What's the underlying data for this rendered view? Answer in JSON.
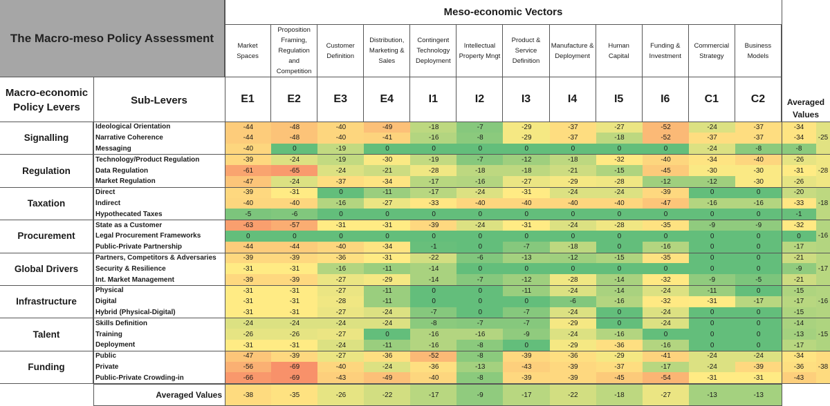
{
  "title": "The Macro-meso Policy Assessment",
  "meso_title": "Meso-economic Vectors",
  "macro_header": "Macro-economic Policy Levers",
  "sublevers_header": "Sub-Levers",
  "averaged_header": "Averaged Values",
  "footer_label": "Averaged Values",
  "columns": [
    {
      "code": "E1",
      "name": "Market Spaces"
    },
    {
      "code": "E2",
      "name": "Proposition Framing, Regulation and Competition"
    },
    {
      "code": "E3",
      "name": "Customer Definition"
    },
    {
      "code": "E4",
      "name": "Distribution, Marketing & Sales"
    },
    {
      "code": "I1",
      "name": "Contingent Technology Deployment"
    },
    {
      "code": "I2",
      "name": "Intellectual Property Mngt"
    },
    {
      "code": "I3",
      "name": "Product & Service Definition"
    },
    {
      "code": "I4",
      "name": "Manufacture & Deployment"
    },
    {
      "code": "I5",
      "name": "Human Capital"
    },
    {
      "code": "I6",
      "name": "Funding & Investment"
    },
    {
      "code": "C1",
      "name": "Commercial Strategy"
    },
    {
      "code": "C2",
      "name": "Business Models"
    }
  ],
  "chart_data": {
    "type": "heatmap",
    "title": "The Macro-meso Policy Assessment",
    "columns": [
      "E1",
      "E2",
      "E3",
      "E4",
      "I1",
      "I2",
      "I3",
      "I4",
      "I5",
      "I6",
      "C1",
      "C2"
    ],
    "groups": [
      {
        "name": "Signalling",
        "average": "-25",
        "rows": [
          {
            "label": "Ideological Orientation",
            "values": [
              -44,
              -48,
              -40,
              -49,
              -18,
              -7,
              -29,
              -37,
              -27,
              -52,
              -24,
              -37
            ],
            "average": -34
          },
          {
            "label": "Narrative Coherence",
            "values": [
              -44,
              -48,
              -40,
              -41,
              -16,
              -8,
              -29,
              -37,
              -18,
              -52,
              -37,
              -37
            ],
            "average": -34
          },
          {
            "label": "Messaging",
            "values": [
              -40,
              0,
              -19,
              0,
              0,
              0,
              0,
              0,
              0,
              0,
              -24,
              -8
            ],
            "average": -8
          }
        ]
      },
      {
        "name": "Regulation",
        "average": "-28",
        "rows": [
          {
            "label": "Technology/Product Regulation",
            "values": [
              -39,
              -24,
              -19,
              -30,
              -19,
              -7,
              -12,
              -18,
              -32,
              -40,
              -34,
              -40
            ],
            "average": -26
          },
          {
            "label": "Data Regulation",
            "values": [
              -61,
              -65,
              -24,
              -21,
              -28,
              -18,
              -18,
              -21,
              -15,
              -45,
              -30,
              -30
            ],
            "average": -31
          },
          {
            "label": "Market Regulation",
            "values": [
              -47,
              -24,
              -37,
              -34,
              -17,
              -16,
              -27,
              -29,
              -28,
              -12,
              -12,
              -30
            ],
            "average": -26
          }
        ]
      },
      {
        "name": "Taxation",
        "average": "-18",
        "rows": [
          {
            "label": "Direct",
            "values": [
              -39,
              -31,
              0,
              -11,
              -17,
              -24,
              -31,
              -24,
              -24,
              -39,
              0,
              0
            ],
            "average": -20
          },
          {
            "label": "Indirect",
            "values": [
              -40,
              -40,
              -16,
              -27,
              -33,
              -40,
              -40,
              -40,
              -40,
              -47,
              -16,
              -16
            ],
            "average": -33
          },
          {
            "label": "Hypothecated Taxes",
            "values": [
              -5,
              -6,
              0,
              0,
              0,
              0,
              0,
              0,
              0,
              0,
              0,
              0
            ],
            "average": -1
          }
        ]
      },
      {
        "name": "Procurement",
        "average": "-16",
        "rows": [
          {
            "label": "State as a Customer",
            "values": [
              -63,
              -57,
              -31,
              -31,
              -39,
              -24,
              -31,
              -24,
              -28,
              -35,
              -9,
              -9
            ],
            "average": -32
          },
          {
            "label": "Legal Procurement Frameworks",
            "values": [
              0,
              0,
              0,
              0,
              0,
              0,
              0,
              0,
              0,
              0,
              0,
              0
            ],
            "average": 0
          },
          {
            "label": "Public-Private Partnership",
            "values": [
              -44,
              -44,
              -40,
              -34,
              -1,
              0,
              -7,
              -18,
              0,
              -16,
              0,
              0
            ],
            "average": -17
          }
        ]
      },
      {
        "name": "Global Drivers",
        "average": "-17",
        "rows": [
          {
            "label": "Partners, Competitors & Adversaries",
            "values": [
              -39,
              -39,
              -36,
              -31,
              -22,
              -6,
              -13,
              -12,
              -15,
              -35,
              0,
              0
            ],
            "average": -21
          },
          {
            "label": "Security & Resilience",
            "values": [
              -31,
              -31,
              -16,
              -11,
              -14,
              0,
              0,
              0,
              0,
              0,
              0,
              0
            ],
            "average": -9
          },
          {
            "label": "Int. Market Management",
            "values": [
              -39,
              -39,
              -27,
              -29,
              -14,
              -7,
              -12,
              -28,
              -14,
              -32,
              -9,
              -5
            ],
            "average": -21
          }
        ]
      },
      {
        "name": "Infrastructure",
        "average": "-16",
        "rows": [
          {
            "label": "Physical",
            "values": [
              -31,
              -31,
              -27,
              -11,
              0,
              0,
              -11,
              -24,
              -14,
              -24,
              -11,
              0
            ],
            "average": -15
          },
          {
            "label": "Digital",
            "values": [
              -31,
              -31,
              -28,
              -11,
              0,
              0,
              0,
              -6,
              -16,
              -32,
              -31,
              -17
            ],
            "average": -17
          },
          {
            "label": "Hybrid (Physical-Digital)",
            "values": [
              -31,
              -31,
              -27,
              -24,
              -7,
              0,
              -7,
              -24,
              0,
              -24,
              0,
              0
            ],
            "average": -15
          }
        ]
      },
      {
        "name": "Talent",
        "average": "-15",
        "rows": [
          {
            "label": "Skills Definition",
            "values": [
              -24,
              -24,
              -24,
              -24,
              -8,
              -7,
              -7,
              -29,
              0,
              -24,
              0,
              0
            ],
            "average": -14
          },
          {
            "label": "Training",
            "values": [
              -26,
              -26,
              -27,
              0,
              -16,
              -16,
              -9,
              -24,
              -16,
              0,
              0,
              0
            ],
            "average": -13
          },
          {
            "label": "Deployment",
            "values": [
              -31,
              -31,
              -24,
              -11,
              -16,
              -8,
              0,
              -29,
              -36,
              -16,
              0,
              0
            ],
            "average": -17
          }
        ]
      },
      {
        "name": "Funding",
        "average": "-38",
        "rows": [
          {
            "label": "Public",
            "values": [
              -47,
              -39,
              -27,
              -36,
              -52,
              -8,
              -39,
              -36,
              -29,
              -41,
              -24,
              -24
            ],
            "average": -34
          },
          {
            "label": "Private",
            "values": [
              -56,
              -69,
              -40,
              -24,
              -36,
              -13,
              -43,
              -39,
              -37,
              -17,
              -24,
              -39
            ],
            "average": -36
          },
          {
            "label": "Public-Private Crowding-in",
            "values": [
              -66,
              -69,
              -43,
              -49,
              -40,
              -8,
              -39,
              -39,
              -45,
              -54,
              -31,
              -31
            ],
            "average": -43
          }
        ]
      }
    ],
    "column_averages": [
      -38,
      -35,
      -26,
      -22,
      -17,
      -9,
      -17,
      -22,
      -18,
      -27,
      -13,
      -13
    ],
    "color_scale": {
      "zero": "#63be7b",
      "mid": "#ffeb84",
      "low": "#f8916a"
    }
  }
}
